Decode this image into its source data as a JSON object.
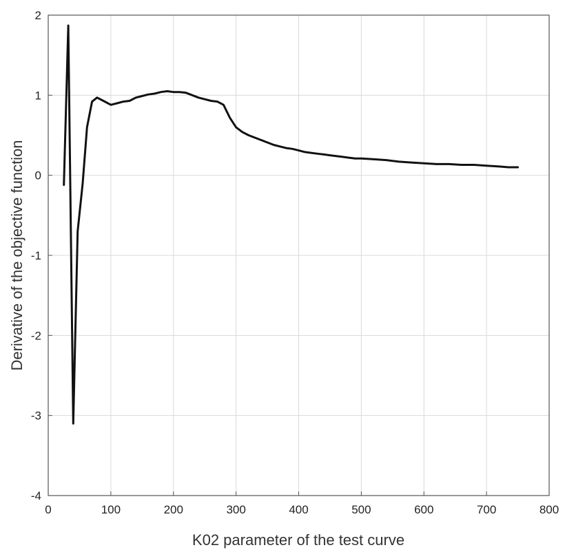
{
  "chart_data": {
    "type": "line",
    "title": "",
    "xlabel": "K02 parameter of the test curve",
    "ylabel": "Derivative of the objective function",
    "xlim": [
      0,
      800
    ],
    "ylim": [
      -4,
      2
    ],
    "xticks": [
      0,
      100,
      200,
      300,
      400,
      500,
      600,
      700,
      800
    ],
    "yticks": [
      -4,
      -3,
      -2,
      -1,
      0,
      1,
      2
    ],
    "xtick_labels": [
      "0",
      "100",
      "200",
      "300",
      "400",
      "500",
      "600",
      "700",
      "800"
    ],
    "ytick_labels": [
      "-4",
      "-3",
      "-2",
      "-1",
      "0",
      "1",
      "2"
    ],
    "grid": true,
    "legend": "none",
    "colors": {
      "line": "#111111",
      "grid": "#d9d9d9",
      "axes": "#555555"
    },
    "series": [
      {
        "x": [
          25,
          32,
          40,
          47,
          55,
          62,
          70,
          78,
          88,
          100,
          110,
          120,
          130,
          140,
          150,
          160,
          170,
          180,
          190,
          200,
          210,
          220,
          230,
          240,
          250,
          260,
          270,
          280,
          290,
          300,
          310,
          320,
          330,
          340,
          350,
          360,
          370,
          380,
          390,
          400,
          410,
          420,
          430,
          440,
          450,
          460,
          470,
          480,
          490,
          500,
          520,
          540,
          560,
          580,
          600,
          620,
          640,
          660,
          680,
          700,
          720,
          735,
          750
        ],
        "y": [
          -0.12,
          1.87,
          -3.1,
          -0.7,
          -0.1,
          0.6,
          0.92,
          0.97,
          0.93,
          0.88,
          0.9,
          0.92,
          0.93,
          0.97,
          0.99,
          1.01,
          1.02,
          1.04,
          1.05,
          1.04,
          1.04,
          1.03,
          1.0,
          0.97,
          0.95,
          0.93,
          0.92,
          0.88,
          0.72,
          0.6,
          0.54,
          0.5,
          0.47,
          0.44,
          0.41,
          0.38,
          0.36,
          0.34,
          0.33,
          0.31,
          0.29,
          0.28,
          0.27,
          0.26,
          0.25,
          0.24,
          0.23,
          0.22,
          0.21,
          0.21,
          0.2,
          0.19,
          0.17,
          0.16,
          0.15,
          0.14,
          0.14,
          0.13,
          0.13,
          0.12,
          0.11,
          0.1,
          0.1
        ]
      }
    ]
  }
}
